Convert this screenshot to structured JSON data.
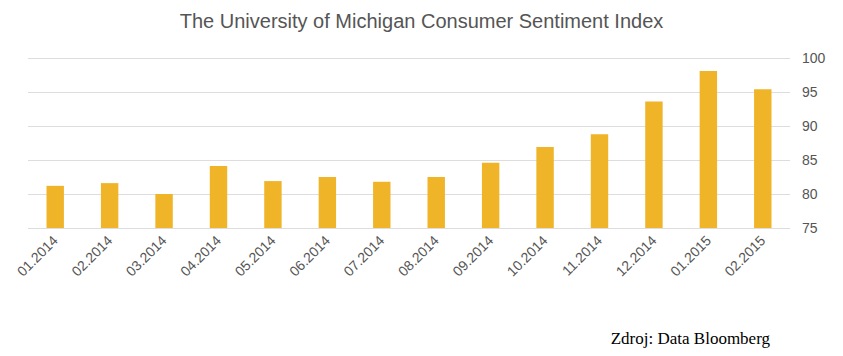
{
  "chart_data": {
    "type": "bar",
    "title": "The University of Michigan Consumer Sentiment Index",
    "annotations": [
      "Zdroj: Data Bloomberg"
    ],
    "categories": [
      "01.2014",
      "02.2014",
      "03.2014",
      "04.2014",
      "05.2014",
      "06.2014",
      "07.2014",
      "08.2014",
      "09.2014",
      "10.2014",
      "11.2014",
      "12.2014",
      "01.2015",
      "02.2015"
    ],
    "values": [
      81.2,
      81.6,
      80.0,
      84.1,
      81.9,
      82.5,
      81.8,
      82.5,
      84.6,
      86.9,
      88.8,
      93.6,
      98.1,
      95.4
    ],
    "color": "#f0b429",
    "ylim": [
      75,
      100
    ],
    "yticks": [
      75,
      80,
      85,
      90,
      95,
      100
    ],
    "grid": true
  }
}
